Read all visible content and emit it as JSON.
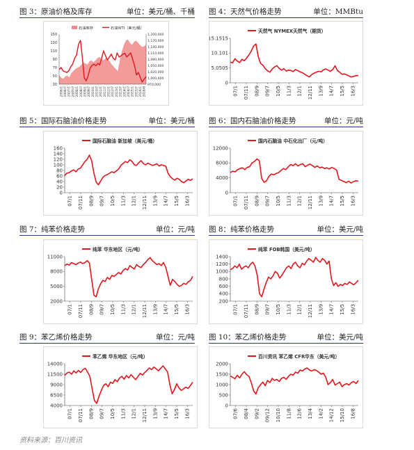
{
  "headers": [
    {
      "title": "图 3：原油价格及库存",
      "unit": "单位：美元/桶、千桶"
    },
    {
      "title": "图 4：天然气价格走势",
      "unit": "单位：MMBtu"
    },
    {
      "title": "图 5：国际石脑油价格走势",
      "unit": "单位：美元/桶"
    },
    {
      "title": "图 6：国内石脑油价格走势",
      "unit": "单位：元/吨"
    },
    {
      "title": "图 7：纯苯价格走势",
      "unit": "单位：元/吨"
    },
    {
      "title": "图 8：纯苯价格走势",
      "unit": "单位：美元/吨"
    },
    {
      "title": "图 9：苯乙烯价格走势",
      "unit": "单位：元/吨"
    },
    {
      "title": "图 10：苯乙烯价格走势",
      "unit": "单位：美元/吨"
    }
  ],
  "source": "资料来源：百川资讯",
  "colors": {
    "line": "#e2161c",
    "area": "#f08a8a",
    "rule": "#1f3a7a"
  },
  "chart_data": [
    {
      "type": "area",
      "legend": [
        "石油库存",
        "石油WTI（美元/桶）"
      ],
      "yticks_left": [
        "150",
        "130",
        "110",
        "90",
        "70",
        "50",
        "30"
      ],
      "ylim_left": [
        30,
        150
      ],
      "yticks_right": [
        "1,200,000",
        "1,170,000",
        "1,140,000",
        "1,110,000",
        "1,080,000",
        "1,050,000",
        "1,020,000",
        "1,000,000",
        "970,000"
      ],
      "ylim_right": [
        970000,
        1200000
      ],
      "xticks": [
        "2006/1",
        "2006/7",
        "2007/1",
        "2007/7",
        "2008/1",
        "2008/7",
        "2009/1",
        "2009/7",
        "2010/1",
        "2010/7",
        "2011/1",
        "2011/7",
        "2012/1",
        "2012/7",
        "2013/1",
        "2013/7",
        "2014/1",
        "2014/7",
        "2015/1",
        "2015/7",
        "2016/1",
        "2016/6"
      ],
      "series": [
        {
          "name": "石油库存",
          "axis": "right",
          "values": [
            1010000,
            1000000,
            995000,
            1005000,
            1010000,
            1000000,
            1020000,
            1030000,
            1040000,
            1045000,
            1050000,
            1060000,
            1070000,
            1065000,
            1060000,
            1075000,
            1080000,
            1070000,
            1080000,
            1090000,
            1095000,
            1085000,
            1080000,
            1090000,
            1085000,
            1075000,
            1060000,
            1050000,
            1040000,
            1030000,
            1080000,
            1120000,
            1150000,
            1170000,
            1175000,
            1160000,
            1150000,
            1165000,
            1170000,
            1160000,
            1150000,
            1140000,
            1145000,
            1150000
          ]
        },
        {
          "name": "石油WTI（美元/桶）",
          "axis": "left",
          "values": [
            65,
            70,
            62,
            60,
            58,
            62,
            72,
            78,
            92,
            100,
            125,
            135,
            95,
            45,
            38,
            50,
            68,
            75,
            78,
            74,
            80,
            76,
            92,
            110,
            98,
            88,
            95,
            102,
            92,
            88,
            105,
            95,
            98,
            102,
            104,
            95,
            100,
            105,
            90,
            75,
            52,
            58,
            46,
            35,
            42,
            48
          ]
        }
      ]
    },
    {
      "type": "line",
      "legend": [
        "天然气 NYMEX天然气（期货）"
      ],
      "yticks": [
        "15.1515",
        "10.101",
        "5.0505",
        "0"
      ],
      "ylim": [
        0,
        15.1515
      ],
      "xticks": [
        "07/1",
        "07/11",
        "08/9",
        "09/7",
        "10/5",
        "11/3",
        "12/1",
        "12/11",
        "13/9",
        "14/7",
        "15/5",
        "16/3"
      ],
      "series": [
        {
          "name": "天然气 NYMEX天然气（期货）",
          "values": [
            7.0,
            6.8,
            8.2,
            7.4,
            6.9,
            8.0,
            7.5,
            8.4,
            9.5,
            10.8,
            12.5,
            13.2,
            9.0,
            6.6,
            6.0,
            4.8,
            4.1,
            3.6,
            4.7,
            5.4,
            5.8,
            4.9,
            4.3,
            4.8,
            4.0,
            4.3,
            4.2,
            3.8,
            4.5,
            4.1,
            3.7,
            3.4,
            2.9,
            2.4,
            2.0,
            2.8,
            3.3,
            3.6,
            3.9,
            3.7,
            4.4,
            4.7,
            4.3,
            3.9,
            4.5,
            5.8,
            4.2,
            3.6,
            2.9,
            3.0,
            2.7,
            2.3,
            2.0,
            2.2,
            2.4,
            2.5
          ]
        }
      ]
    },
    {
      "type": "line",
      "legend": [
        "国际石脑油 新加坡（美元/桶）"
      ],
      "yticks": [
        "160",
        "140",
        "120",
        "100",
        "80",
        "60",
        "40",
        "20",
        "0"
      ],
      "ylim": [
        0,
        160
      ],
      "xticks": [
        "07/1",
        "07/11",
        "08/9",
        "09/7",
        "10/5",
        "11/3",
        "12/1",
        "12/11",
        "13/9",
        "14/7",
        "15/5",
        "16/3"
      ],
      "series": [
        {
          "name": "国际石脑油 新加坡（美元/桶）",
          "values": [
            62,
            70,
            72,
            78,
            82,
            75,
            85,
            88,
            100,
            112,
            120,
            135,
            115,
            70,
            38,
            28,
            42,
            55,
            62,
            65,
            70,
            75,
            72,
            78,
            85,
            98,
            105,
            112,
            108,
            118,
            112,
            100,
            98,
            108,
            115,
            105,
            100,
            106,
            102,
            98,
            100,
            104,
            96,
            100,
            98,
            95,
            70,
            58,
            50,
            45,
            52,
            48,
            40,
            36,
            42,
            48,
            44,
            50
          ]
        }
      ]
    },
    {
      "type": "line",
      "legend": [
        "国内石脑油 中石化出厂（元/吨）"
      ],
      "yticks": [
        "12000",
        "8000",
        "4000",
        "0"
      ],
      "ylim": [
        0,
        12000
      ],
      "xticks": [
        "07/1",
        "07/11",
        "08/9",
        "09/7",
        "10/5",
        "11/3",
        "12/1",
        "12/11",
        "13/9",
        "14/7",
        "15/5",
        "16/3"
      ],
      "series": [
        {
          "name": "国内石脑油 中石化出厂（元/吨）",
          "values": [
            5400,
            5800,
            5600,
            6200,
            6500,
            6700,
            6200,
            6800,
            7000,
            8000,
            8400,
            9100,
            8600,
            3800,
            2800,
            3200,
            4400,
            5000,
            4800,
            5200,
            5400,
            6000,
            6500,
            6200,
            7000,
            7600,
            7300,
            7800,
            7200,
            7600,
            7800,
            7000,
            7400,
            7700,
            7300,
            6800,
            7200,
            6700,
            6900,
            6500,
            6700,
            6400,
            6800,
            6500,
            6100,
            3600,
            3300,
            3000,
            2700,
            3100,
            2600,
            3000,
            3200,
            3100
          ]
        }
      ]
    },
    {
      "type": "line",
      "legend": [
        "纯苯 华东地区（元/吨）"
      ],
      "yticks": [
        "11000",
        "8000",
        "5000",
        "2000"
      ],
      "ylim": [
        2000,
        11000
      ],
      "xticks": [
        "07/1",
        "07/11",
        "08/9",
        "09/7",
        "10/5",
        "11/3",
        "12/1",
        "12/11",
        "13/9",
        "14/7",
        "15/5",
        "16/3"
      ],
      "series": [
        {
          "name": "纯苯 华东地区（元/吨）",
          "values": [
            9200,
            9500,
            9300,
            9800,
            9600,
            9400,
            9700,
            9900,
            9600,
            9800,
            10200,
            9700,
            6500,
            3200,
            2900,
            4500,
            5500,
            6200,
            6000,
            6800,
            6400,
            7200,
            7000,
            7400,
            7800,
            7500,
            8200,
            8600,
            8300,
            9200,
            8800,
            8500,
            9400,
            9000,
            8800,
            9400,
            9800,
            10400,
            10800,
            10200,
            9800,
            9400,
            9600,
            9200,
            9800,
            8800,
            7000,
            5200,
            6400,
            6000,
            5400,
            5000,
            5200,
            5600,
            5400,
            5900,
            6200,
            7000
          ]
        }
      ]
    },
    {
      "type": "line",
      "legend": [
        "纯苯 FOB韩国（美元/吨）"
      ],
      "yticks": [
        "1400",
        "1200",
        "1000",
        "800",
        "600",
        "400",
        "200"
      ],
      "ylim": [
        200,
        1400
      ],
      "xticks": [
        "07/1",
        "07/11",
        "08/9",
        "09/7",
        "10/5",
        "11/3",
        "12/1",
        "12/11",
        "13/9",
        "14/7",
        "15/5",
        "16/3"
      ],
      "series": [
        {
          "name": "纯苯 FOB韩国（美元/吨）",
          "values": [
            1050,
            1080,
            1150,
            1100,
            1200,
            1060,
            1120,
            1150,
            1100,
            1200,
            1250,
            1150,
            900,
            400,
            320,
            520,
            700,
            850,
            800,
            880,
            1000,
            950,
            820,
            900,
            1000,
            1100,
            1150,
            1080,
            1200,
            1250,
            1150,
            1100,
            1220,
            1180,
            1280,
            1350,
            1300,
            1250,
            1380,
            1300,
            1250,
            1350,
            1300,
            1200,
            1280,
            800,
            620,
            700,
            600,
            650,
            620,
            680,
            650,
            720,
            680,
            640,
            700,
            760
          ]
        }
      ]
    },
    {
      "type": "line",
      "legend": [
        "苯乙烯 华东地区（元/吨）"
      ],
      "yticks": [
        "14000",
        "11500",
        "9000",
        "6500",
        "4000"
      ],
      "ylim": [
        4000,
        14000
      ],
      "xticks": [
        "07/1",
        "07/11",
        "08/9",
        "09/7",
        "10/5",
        "11/3",
        "12/1",
        "12/11",
        "13/9",
        "14/7",
        "15/5",
        "16/3"
      ],
      "series": [
        {
          "name": "苯乙烯 华东地区（元/吨）",
          "values": [
            11200,
            11800,
            12000,
            11500,
            12300,
            11800,
            12400,
            11900,
            12600,
            12900,
            12000,
            11000,
            8000,
            5200,
            4500,
            6200,
            7600,
            8800,
            9200,
            8500,
            9600,
            9300,
            10200,
            9700,
            10600,
            11000,
            10300,
            11200,
            10600,
            11400,
            10800,
            10200,
            10900,
            11700,
            11300,
            11900,
            12400,
            13000,
            12600,
            13200,
            12800,
            12300,
            12900,
            13500,
            12800,
            12000,
            9000,
            6800,
            7800,
            9200,
            8200,
            7600,
            8000,
            8400,
            8100,
            8800,
            9600
          ]
        }
      ]
    },
    {
      "type": "line",
      "legend": [
        "百川资讯 苯乙烯 CFR华东（美元/吨）"
      ],
      "yticks": [
        "2000",
        "1500",
        "1000",
        "500",
        "0"
      ],
      "ylim": [
        0,
        2000
      ],
      "xticks": [
        "07/6",
        "08/4",
        "09/2",
        "09/12",
        "10/10",
        "11/8",
        "12/6",
        "13/4",
        "14/2",
        "14/12",
        "15/10",
        "16/8"
      ],
      "series": [
        {
          "name": "百川资讯 苯乙烯 CFR华东（美元/吨）",
          "values": [
            1420,
            1350,
            1280,
            1450,
            1320,
            1500,
            1620,
            1480,
            1400,
            1100,
            700,
            550,
            850,
            1000,
            1120,
            950,
            1200,
            1100,
            1300,
            1200,
            1250,
            1150,
            1300,
            1350,
            1250,
            1400,
            1500,
            1450,
            1600,
            1550,
            1700,
            1650,
            1750,
            1800,
            1700,
            1650,
            1720,
            1680,
            1600,
            1500,
            1550,
            1350,
            1000,
            1100,
            1250,
            980,
            1050,
            1120,
            900,
            1000,
            1050,
            980,
            1100,
            1150,
            1050,
            1200
          ]
        }
      ]
    }
  ]
}
